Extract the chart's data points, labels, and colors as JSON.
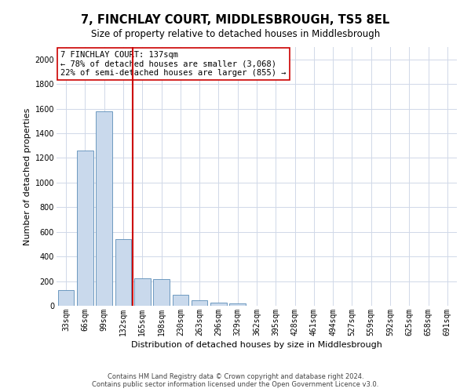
{
  "title": "7, FINCHLAY COURT, MIDDLESBROUGH, TS5 8EL",
  "subtitle": "Size of property relative to detached houses in Middlesbrough",
  "xlabel": "Distribution of detached houses by size in Middlesbrough",
  "ylabel": "Number of detached properties",
  "footer_line1": "Contains HM Land Registry data © Crown copyright and database right 2024.",
  "footer_line2": "Contains public sector information licensed under the Open Government Licence v3.0.",
  "categories": [
    "33sqm",
    "66sqm",
    "99sqm",
    "132sqm",
    "165sqm",
    "198sqm",
    "230sqm",
    "263sqm",
    "296sqm",
    "329sqm",
    "362sqm",
    "395sqm",
    "428sqm",
    "461sqm",
    "494sqm",
    "527sqm",
    "559sqm",
    "592sqm",
    "625sqm",
    "658sqm",
    "691sqm"
  ],
  "values": [
    130,
    1260,
    1580,
    540,
    220,
    215,
    90,
    45,
    28,
    18,
    0,
    0,
    0,
    0,
    0,
    0,
    0,
    0,
    0,
    0,
    0
  ],
  "bar_color": "#c9d9ec",
  "bar_edge_color": "#5b8db8",
  "vline_x_index": 3.5,
  "vline_color": "#cc0000",
  "annotation_line1": "7 FINCHLAY COURT: 137sqm",
  "annotation_line2": "← 78% of detached houses are smaller (3,068)",
  "annotation_line3": "22% of semi-detached houses are larger (855) →",
  "annotation_box_color": "#ffffff",
  "annotation_box_edge_color": "#cc0000",
  "ylim": [
    0,
    2100
  ],
  "yticks": [
    0,
    200,
    400,
    600,
    800,
    1000,
    1200,
    1400,
    1600,
    1800,
    2000
  ],
  "background_color": "#ffffff",
  "grid_color": "#d0d8e8",
  "title_fontsize": 10.5,
  "subtitle_fontsize": 8.5,
  "axis_label_fontsize": 8,
  "tick_fontsize": 7,
  "annotation_fontsize": 7.5,
  "footer_fontsize": 6
}
